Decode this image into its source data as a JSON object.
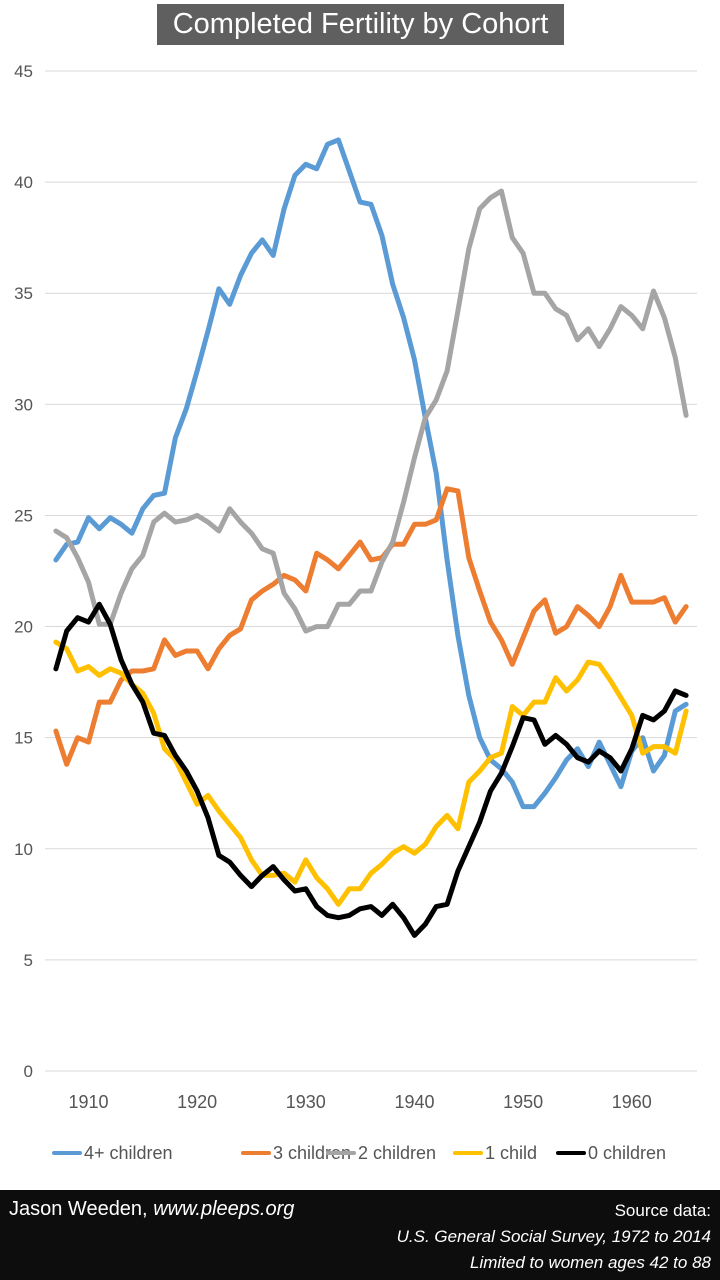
{
  "chart_data": {
    "type": "line",
    "title": "Completed Fertility by Cohort",
    "xlabel": "",
    "ylabel": "",
    "ylim": [
      0,
      45
    ],
    "yticks": [
      0,
      5,
      10,
      15,
      20,
      25,
      30,
      35,
      40,
      45
    ],
    "xlim": [
      1906,
      1966
    ],
    "xticks": [
      1910,
      1920,
      1930,
      1940,
      1950,
      1960
    ],
    "grid": "horizontal",
    "legend_position": "bottom",
    "x": [
      1907,
      1908,
      1909,
      1910,
      1911,
      1912,
      1913,
      1914,
      1915,
      1916,
      1917,
      1918,
      1919,
      1920,
      1921,
      1922,
      1923,
      1924,
      1925,
      1926,
      1927,
      1928,
      1929,
      1930,
      1931,
      1932,
      1933,
      1934,
      1935,
      1936,
      1937,
      1938,
      1939,
      1940,
      1941,
      1942,
      1943,
      1944,
      1945,
      1946,
      1947,
      1948,
      1949,
      1950,
      1951,
      1952,
      1953,
      1954,
      1955,
      1956,
      1957,
      1958,
      1959,
      1960,
      1961,
      1962,
      1963,
      1964,
      1965
    ],
    "series": [
      {
        "name": "4+ children",
        "color": "#5b9bd5",
        "values": [
          23.0,
          23.7,
          23.8,
          24.9,
          24.4,
          24.9,
          24.6,
          24.2,
          25.3,
          25.9,
          26.0,
          28.5,
          29.8,
          31.5,
          33.3,
          35.2,
          34.5,
          35.8,
          36.8,
          37.4,
          36.7,
          38.8,
          40.3,
          40.8,
          40.6,
          41.7,
          41.9,
          40.5,
          39.1,
          39.0,
          37.6,
          35.4,
          33.9,
          32.0,
          29.4,
          26.9,
          23.0,
          19.6,
          16.9,
          15.0,
          14.0,
          13.6,
          13.0,
          11.9,
          11.9,
          12.5,
          13.2,
          14.0,
          14.5,
          13.7,
          14.8,
          13.8,
          12.8,
          14.4,
          15.0,
          13.5,
          14.2,
          16.2,
          16.5
        ]
      },
      {
        "name": "3 children",
        "color": "#ed7d31",
        "values": [
          15.3,
          13.8,
          15.0,
          14.8,
          16.6,
          16.6,
          17.6,
          18.0,
          18.0,
          18.1,
          19.4,
          18.7,
          18.9,
          18.9,
          18.1,
          19.0,
          19.6,
          19.9,
          21.2,
          21.6,
          21.9,
          22.3,
          22.1,
          21.6,
          23.3,
          23.0,
          22.6,
          23.2,
          23.8,
          23.0,
          23.1,
          23.7,
          23.7,
          24.6,
          24.6,
          24.8,
          26.2,
          26.1,
          23.1,
          21.6,
          20.2,
          19.4,
          18.3,
          19.5,
          20.7,
          21.2,
          19.7,
          20.0,
          20.9,
          20.5,
          20.0,
          20.9,
          22.3,
          21.1,
          21.1,
          21.1,
          21.3,
          20.2,
          20.9
        ]
      },
      {
        "name": "2 children",
        "color": "#a5a5a5",
        "values": [
          24.3,
          24.0,
          23.1,
          22.0,
          20.1,
          20.1,
          21.5,
          22.6,
          23.2,
          24.7,
          25.1,
          24.7,
          24.8,
          25.0,
          24.7,
          24.3,
          25.3,
          24.7,
          24.2,
          23.5,
          23.3,
          21.5,
          20.8,
          19.8,
          20.0,
          20.0,
          21.0,
          21.0,
          21.6,
          21.6,
          22.9,
          23.8,
          25.6,
          27.6,
          29.4,
          30.2,
          31.5,
          34.2,
          37.0,
          38.8,
          39.3,
          39.6,
          37.5,
          36.8,
          35.0,
          35.0,
          34.3,
          34.0,
          32.9,
          33.4,
          32.6,
          33.4,
          34.4,
          34.0,
          33.4,
          35.1,
          33.9,
          32.1,
          29.5
        ]
      },
      {
        "name": "1 child",
        "color": "#ffc000",
        "values": [
          19.3,
          19.0,
          18.0,
          18.2,
          17.8,
          18.1,
          17.9,
          17.4,
          17.0,
          16.1,
          14.5,
          14.0,
          13.0,
          12.0,
          12.4,
          11.7,
          11.1,
          10.5,
          9.5,
          8.8,
          8.8,
          8.9,
          8.5,
          9.5,
          8.7,
          8.2,
          7.5,
          8.2,
          8.2,
          8.9,
          9.3,
          9.8,
          10.1,
          9.8,
          10.2,
          11.0,
          11.5,
          10.9,
          13.0,
          13.5,
          14.1,
          14.3,
          16.4,
          16.0,
          16.6,
          16.6,
          17.7,
          17.1,
          17.6,
          18.4,
          18.3,
          17.6,
          16.8,
          16.0,
          14.3,
          14.6,
          14.6,
          14.3,
          16.2
        ]
      },
      {
        "name": "0 children",
        "color": "#000000",
        "values": [
          18.1,
          19.8,
          20.4,
          20.2,
          21.0,
          20.1,
          18.5,
          17.4,
          16.6,
          15.2,
          15.1,
          14.2,
          13.5,
          12.6,
          11.4,
          9.7,
          9.4,
          8.8,
          8.3,
          8.8,
          9.2,
          8.6,
          8.1,
          8.2,
          7.4,
          7.0,
          6.9,
          7.0,
          7.3,
          7.4,
          7.0,
          7.5,
          6.9,
          6.1,
          6.6,
          7.4,
          7.5,
          9.0,
          10.1,
          11.2,
          12.6,
          13.4,
          14.6,
          15.9,
          15.8,
          14.7,
          15.1,
          14.7,
          14.1,
          13.9,
          14.4,
          14.1,
          13.5,
          14.5,
          16.0,
          15.8,
          16.2,
          17.1,
          16.9
        ]
      }
    ]
  },
  "footer": {
    "author_name": "Jason Weeden,",
    "author_site": "www.pleeps.org",
    "source_label": "Source data:",
    "source_line1": "U.S. General Social Survey, 1972 to 2014",
    "source_line2": "Limited to women ages 42 to 88"
  }
}
